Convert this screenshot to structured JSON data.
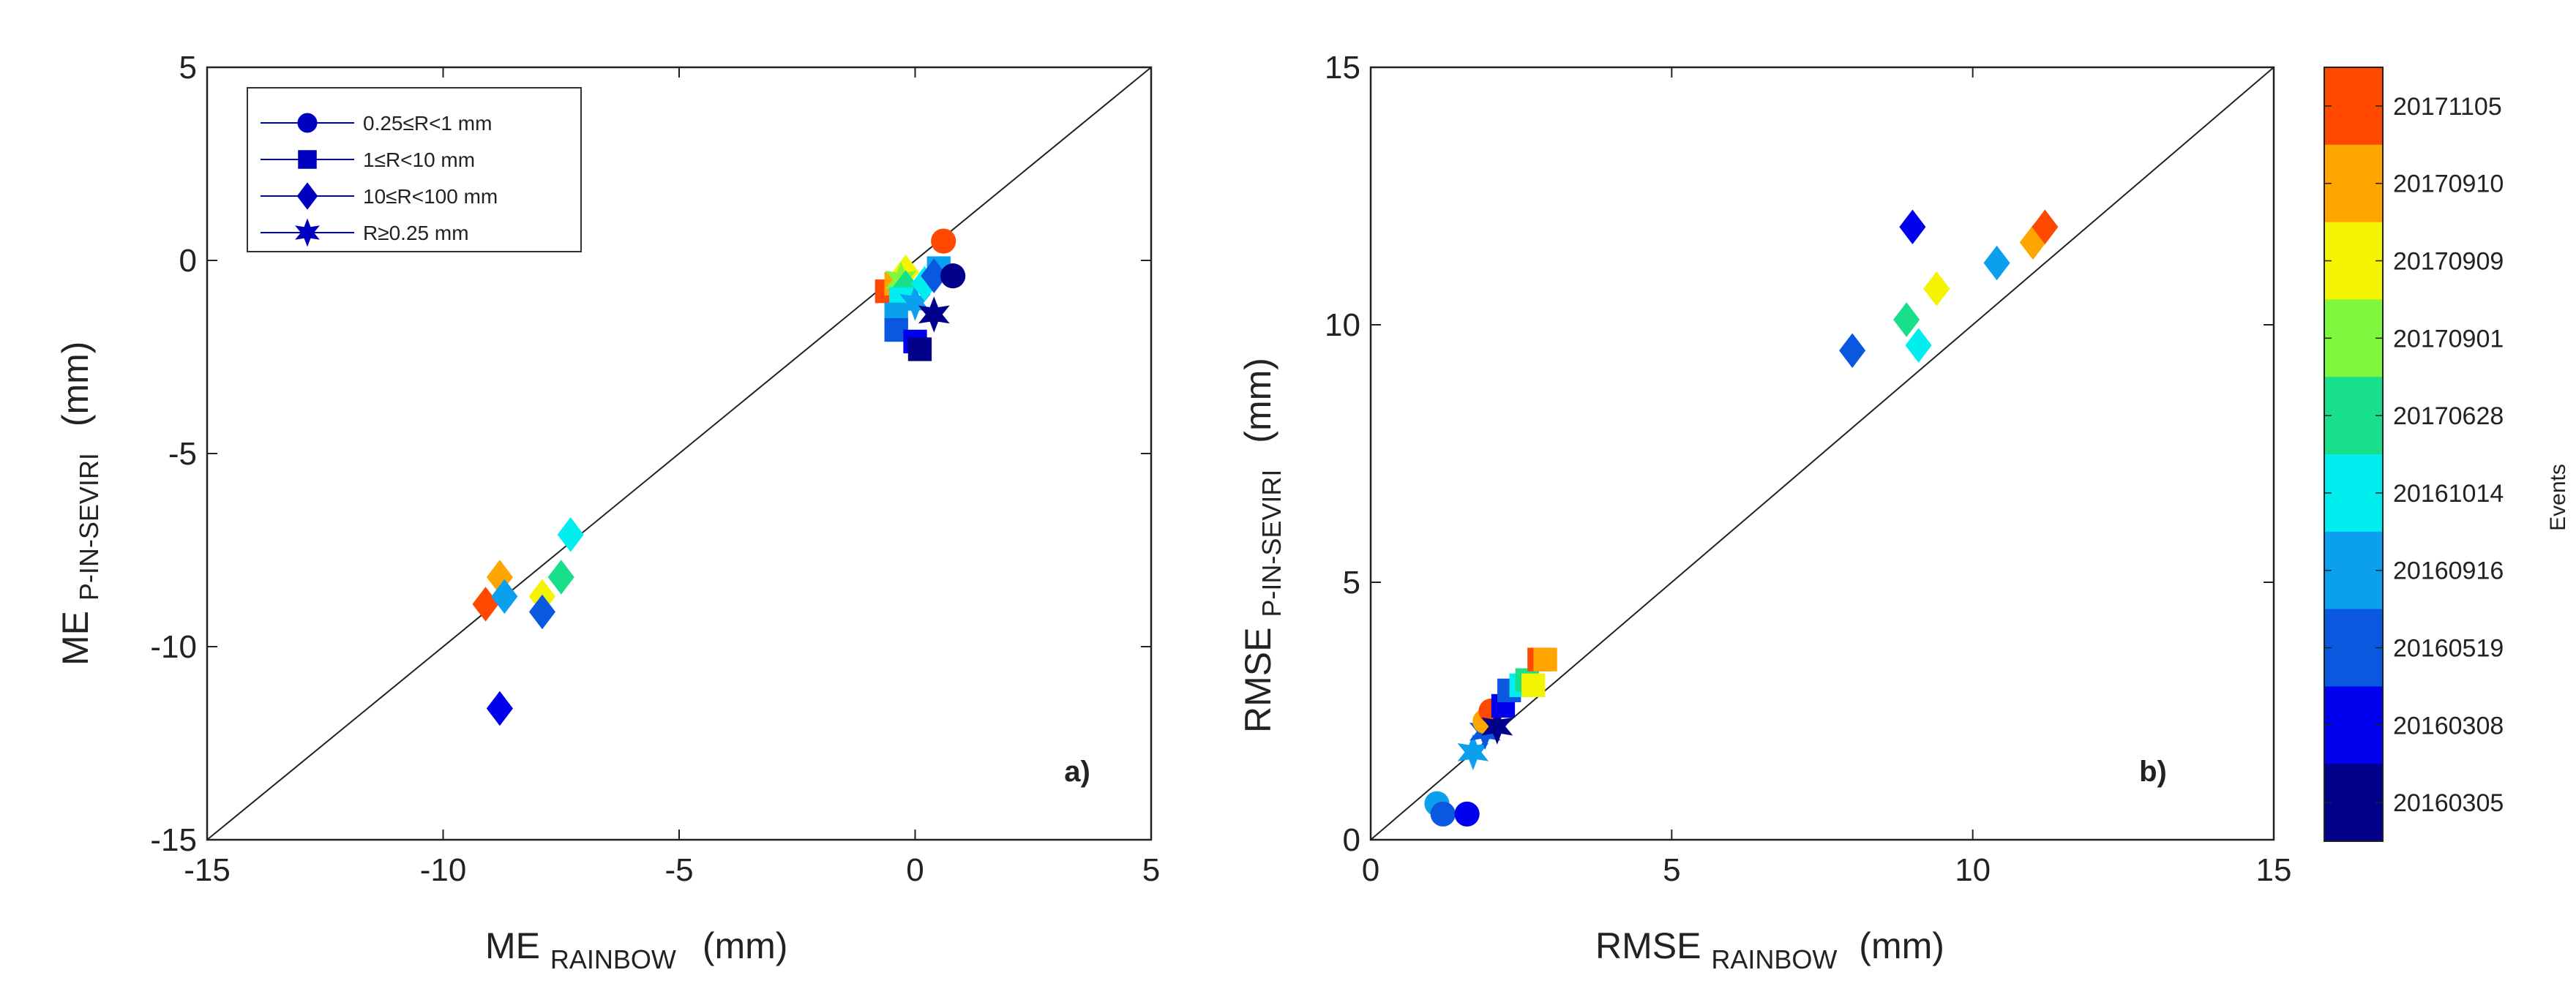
{
  "event_colors": {
    "20160305": "#00008b",
    "20160308": "#0000ee",
    "20160519": "#0a58e0",
    "20160916": "#0aa0ee",
    "20161014": "#00eef0",
    "20170628": "#18e08a",
    "20170901": "#7ef73c",
    "20170909": "#f4f400",
    "20170910": "#ffa500",
    "20171105": "#ff4800"
  },
  "colorbar": {
    "label": "Events",
    "events_top_to_bottom": [
      "20171105",
      "20170910",
      "20170909",
      "20170901",
      "20170628",
      "20161014",
      "20160916",
      "20160519",
      "20160308",
      "20160305"
    ]
  },
  "chart_data": [
    {
      "type": "scatter",
      "panel_label": "a)",
      "xlabel": {
        "main": "ME",
        "sub": "RAINBOW",
        "unit": "(mm)"
      },
      "ylabel": {
        "main": "ME",
        "sub": "P-IN-SEVIRI",
        "unit": "(mm)"
      },
      "xlim": [
        -15,
        5
      ],
      "ylim": [
        -15,
        5
      ],
      "xticks": [
        "-15",
        "-10",
        "-5",
        "0",
        "5"
      ],
      "yticks": [
        "-15",
        "-10",
        "-5",
        "0",
        "5"
      ],
      "reference_line": "1:1",
      "legend": {
        "position": "top-left",
        "entries": [
          {
            "marker": "circle",
            "label": "0.25≤R<1 mm"
          },
          {
            "marker": "square",
            "label": "1≤R<10 mm"
          },
          {
            "marker": "diamond",
            "label": "10≤R<100 mm"
          },
          {
            "marker": "star",
            "label": "R≥0.25 mm"
          }
        ]
      },
      "points": [
        {
          "x": -9.1,
          "y": -8.9,
          "marker": "diamond",
          "event": "20171105"
        },
        {
          "x": -8.8,
          "y": -8.2,
          "marker": "diamond",
          "event": "20170910"
        },
        {
          "x": -8.7,
          "y": -8.7,
          "marker": "diamond",
          "event": "20160916"
        },
        {
          "x": -8.8,
          "y": -11.6,
          "marker": "diamond",
          "event": "20160308"
        },
        {
          "x": -7.9,
          "y": -8.7,
          "marker": "diamond",
          "event": "20170909"
        },
        {
          "x": -7.9,
          "y": -9.1,
          "marker": "diamond",
          "event": "20160519"
        },
        {
          "x": -7.5,
          "y": -8.2,
          "marker": "diamond",
          "event": "20170628"
        },
        {
          "x": -7.3,
          "y": -7.1,
          "marker": "diamond",
          "event": "20161014"
        },
        {
          "x": -0.6,
          "y": -0.8,
          "marker": "square",
          "event": "20171105"
        },
        {
          "x": -0.4,
          "y": -0.6,
          "marker": "square",
          "event": "20170910"
        },
        {
          "x": -0.2,
          "y": -0.3,
          "marker": "diamond",
          "event": "20170909"
        },
        {
          "x": -0.3,
          "y": -0.5,
          "marker": "star",
          "event": "20170901"
        },
        {
          "x": -0.2,
          "y": -0.7,
          "marker": "diamond",
          "event": "20170628"
        },
        {
          "x": -0.3,
          "y": -1.0,
          "marker": "square",
          "event": "20161014"
        },
        {
          "x": -0.4,
          "y": -1.4,
          "marker": "square",
          "event": "20160916"
        },
        {
          "x": -0.4,
          "y": -1.8,
          "marker": "square",
          "event": "20160519"
        },
        {
          "x": 0.0,
          "y": -2.1,
          "marker": "square",
          "event": "20160308"
        },
        {
          "x": 0.1,
          "y": -2.3,
          "marker": "square",
          "event": "20160305"
        },
        {
          "x": 0.0,
          "y": -1.1,
          "marker": "star",
          "event": "20160916"
        },
        {
          "x": 0.2,
          "y": -0.6,
          "marker": "diamond",
          "event": "20161014"
        },
        {
          "x": 0.5,
          "y": -0.2,
          "marker": "square",
          "event": "20160916"
        },
        {
          "x": 0.4,
          "y": -0.4,
          "marker": "diamond",
          "event": "20160519"
        },
        {
          "x": 0.4,
          "y": -1.4,
          "marker": "star",
          "event": "20160305"
        },
        {
          "x": 0.6,
          "y": 0.5,
          "marker": "circle",
          "event": "20171105"
        },
        {
          "x": 0.8,
          "y": -0.4,
          "marker": "circle",
          "event": "20160305"
        }
      ]
    },
    {
      "type": "scatter",
      "panel_label": "b)",
      "xlabel": {
        "main": "RMSE",
        "sub": "RAINBOW",
        "unit": "(mm)"
      },
      "ylabel": {
        "main": "RMSE",
        "sub": "P-IN-SEVIRI",
        "unit": "(mm)"
      },
      "xlim": [
        0,
        15
      ],
      "ylim": [
        0,
        15
      ],
      "xticks": [
        "0",
        "5",
        "10",
        "15"
      ],
      "yticks": [
        "0",
        "5",
        "10",
        "15"
      ],
      "reference_line": "1:1",
      "points": [
        {
          "x": 1.1,
          "y": 0.7,
          "marker": "circle",
          "event": "20160916"
        },
        {
          "x": 1.2,
          "y": 0.5,
          "marker": "circle",
          "event": "20160519"
        },
        {
          "x": 1.6,
          "y": 0.5,
          "marker": "circle",
          "event": "20160308"
        },
        {
          "x": 1.7,
          "y": 1.7,
          "marker": "star",
          "event": "20160916"
        },
        {
          "x": 1.9,
          "y": 2.1,
          "marker": "star",
          "event": "20160519"
        },
        {
          "x": 1.9,
          "y": 2.3,
          "marker": "circle",
          "event": "20170910"
        },
        {
          "x": 2.0,
          "y": 2.5,
          "marker": "circle",
          "event": "20171105"
        },
        {
          "x": 2.1,
          "y": 2.2,
          "marker": "star",
          "event": "20160305"
        },
        {
          "x": 2.2,
          "y": 2.6,
          "marker": "square",
          "event": "20160308"
        },
        {
          "x": 2.3,
          "y": 2.9,
          "marker": "square",
          "event": "20160519"
        },
        {
          "x": 2.5,
          "y": 3.0,
          "marker": "square",
          "event": "20161014"
        },
        {
          "x": 2.6,
          "y": 3.1,
          "marker": "square",
          "event": "20170628"
        },
        {
          "x": 2.7,
          "y": 3.0,
          "marker": "square",
          "event": "20170909"
        },
        {
          "x": 2.8,
          "y": 3.5,
          "marker": "square",
          "event": "20171105"
        },
        {
          "x": 2.9,
          "y": 3.5,
          "marker": "square",
          "event": "20170910"
        },
        {
          "x": 8.0,
          "y": 9.5,
          "marker": "diamond",
          "event": "20160519"
        },
        {
          "x": 8.9,
          "y": 10.1,
          "marker": "diamond",
          "event": "20170628"
        },
        {
          "x": 9.0,
          "y": 11.9,
          "marker": "diamond",
          "event": "20160308"
        },
        {
          "x": 9.1,
          "y": 9.6,
          "marker": "diamond",
          "event": "20161014"
        },
        {
          "x": 9.4,
          "y": 10.7,
          "marker": "diamond",
          "event": "20170909"
        },
        {
          "x": 10.4,
          "y": 11.2,
          "marker": "diamond",
          "event": "20160916"
        },
        {
          "x": 11.0,
          "y": 11.6,
          "marker": "diamond",
          "event": "20170910"
        },
        {
          "x": 11.2,
          "y": 11.9,
          "marker": "diamond",
          "event": "20171105"
        }
      ]
    }
  ]
}
